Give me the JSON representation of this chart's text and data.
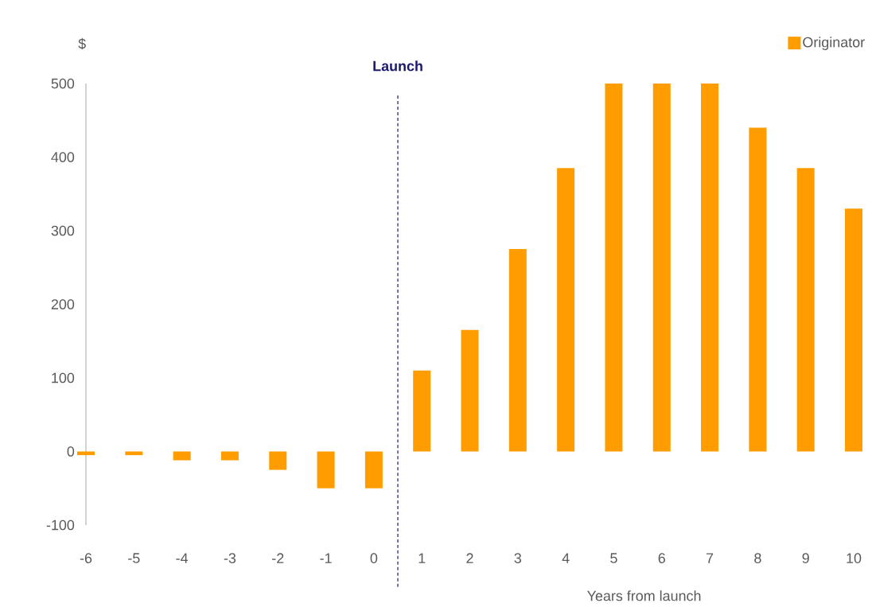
{
  "chart_data": {
    "type": "bar",
    "ylabel": "$",
    "xlabel": "Years from launch",
    "x": [
      -6,
      -5,
      -4,
      -3,
      -2,
      -1,
      0,
      1,
      2,
      3,
      4,
      5,
      6,
      7,
      8,
      9,
      10
    ],
    "series": [
      {
        "name": "Originator",
        "color": "#ff9c00",
        "values": [
          -5,
          -5,
          -12,
          -12,
          -25,
          -50,
          -50,
          110,
          165,
          275,
          385,
          500,
          500,
          500,
          440,
          385,
          330
        ]
      }
    ],
    "xlim": [
      -6,
      10
    ],
    "xticks": [
      -6,
      -5,
      -4,
      -3,
      -2,
      -1,
      0,
      1,
      2,
      3,
      4,
      5,
      6,
      7,
      8,
      9,
      10
    ],
    "ylim": [
      -100,
      500
    ],
    "yticks": [
      -100,
      0,
      100,
      200,
      300,
      400,
      500
    ],
    "ref_lines": [
      {
        "axis": "x",
        "value": 0.5,
        "label": "Launch",
        "color": "#1b1a6e",
        "line_style": "dashed"
      }
    ],
    "grid": false,
    "legend": "top right"
  }
}
